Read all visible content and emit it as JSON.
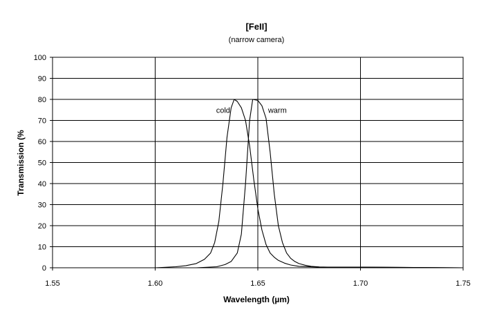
{
  "chart_data": {
    "type": "line",
    "title": "[FeII]",
    "subtitle": "(narrow camera)",
    "xlabel": "Wavelength (µm)",
    "ylabel": "Transmission (%",
    "xlim": [
      1.55,
      1.75
    ],
    "ylim": [
      0,
      100
    ],
    "xticks": [
      "1.55",
      "1.60",
      "1.65",
      "1.70",
      "1.75"
    ],
    "xtick_values": [
      1.55,
      1.6,
      1.65,
      1.7,
      1.75
    ],
    "yticks": [
      "0",
      "10",
      "20",
      "30",
      "40",
      "50",
      "60",
      "70",
      "80",
      "90",
      "100"
    ],
    "ytick_values": [
      0,
      10,
      20,
      30,
      40,
      50,
      60,
      70,
      80,
      90,
      100
    ],
    "grid": "on",
    "line_color": "#000000",
    "series": [
      {
        "name": "cold",
        "x": [
          1.55,
          1.6,
          1.61,
          1.615,
          1.62,
          1.624,
          1.627,
          1.629,
          1.631,
          1.633,
          1.635,
          1.637,
          1.6385,
          1.64,
          1.642,
          1.644,
          1.646,
          1.648,
          1.65,
          1.652,
          1.654,
          1.656,
          1.658,
          1.66,
          1.663,
          1.666,
          1.67,
          1.68,
          1.7,
          1.75
        ],
        "y": [
          0,
          0,
          0.5,
          1,
          2,
          4,
          7,
          12,
          22,
          40,
          62,
          76,
          80,
          79,
          76,
          70,
          58,
          42,
          28,
          18,
          11,
          7,
          5,
          3.5,
          2.2,
          1.3,
          0.7,
          0.3,
          0.3,
          0
        ]
      },
      {
        "name": "warm",
        "x": [
          1.55,
          1.62,
          1.63,
          1.634,
          1.637,
          1.64,
          1.642,
          1.644,
          1.646,
          1.6475,
          1.65,
          1.652,
          1.654,
          1.656,
          1.658,
          1.66,
          1.662,
          1.664,
          1.666,
          1.668,
          1.67,
          1.673,
          1.676,
          1.68,
          1.69,
          1.7,
          1.75
        ],
        "y": [
          0,
          0,
          0.5,
          1.5,
          3,
          7,
          16,
          40,
          70,
          80,
          79.5,
          77,
          71,
          55,
          35,
          20,
          12,
          7,
          4.5,
          3,
          2,
          1.2,
          0.7,
          0.4,
          0.2,
          0.3,
          0
        ]
      }
    ],
    "annotations": [
      {
        "text": "cold",
        "x": 1.6365,
        "y": 75
      },
      {
        "text": "warm",
        "x": 1.655,
        "y": 75
      }
    ]
  }
}
